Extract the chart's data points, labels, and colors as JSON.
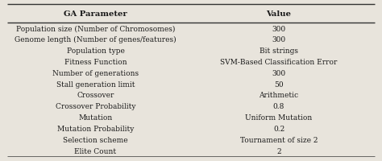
{
  "col1_header": "GA Parameter",
  "col2_header": "Value",
  "rows": [
    [
      "Population size (Number of Chromosomes)",
      "300"
    ],
    [
      "Genome length (Number of genes/features)",
      "300"
    ],
    [
      "Population type",
      "Bit strings"
    ],
    [
      "Fitness Function",
      "SVM-Based Classification Error"
    ],
    [
      "Number of generations",
      "300"
    ],
    [
      "Stall generation limit",
      "50"
    ],
    [
      "Crossover",
      "Arithmetic"
    ],
    [
      "Crossover Probability",
      "0.8"
    ],
    [
      "Mutation",
      "Uniform Mutation"
    ],
    [
      "Mutation Probability",
      "0.2"
    ],
    [
      "Selection scheme",
      "Tournament of size 2"
    ],
    [
      "Elite Count",
      "2"
    ]
  ],
  "bg_color": "#e8e4dc",
  "text_color": "#1a1a1a",
  "font_size": 6.5,
  "header_font_size": 7.2,
  "col_split": 0.48,
  "figwidth": 4.74,
  "figheight": 2.01,
  "dpi": 100
}
